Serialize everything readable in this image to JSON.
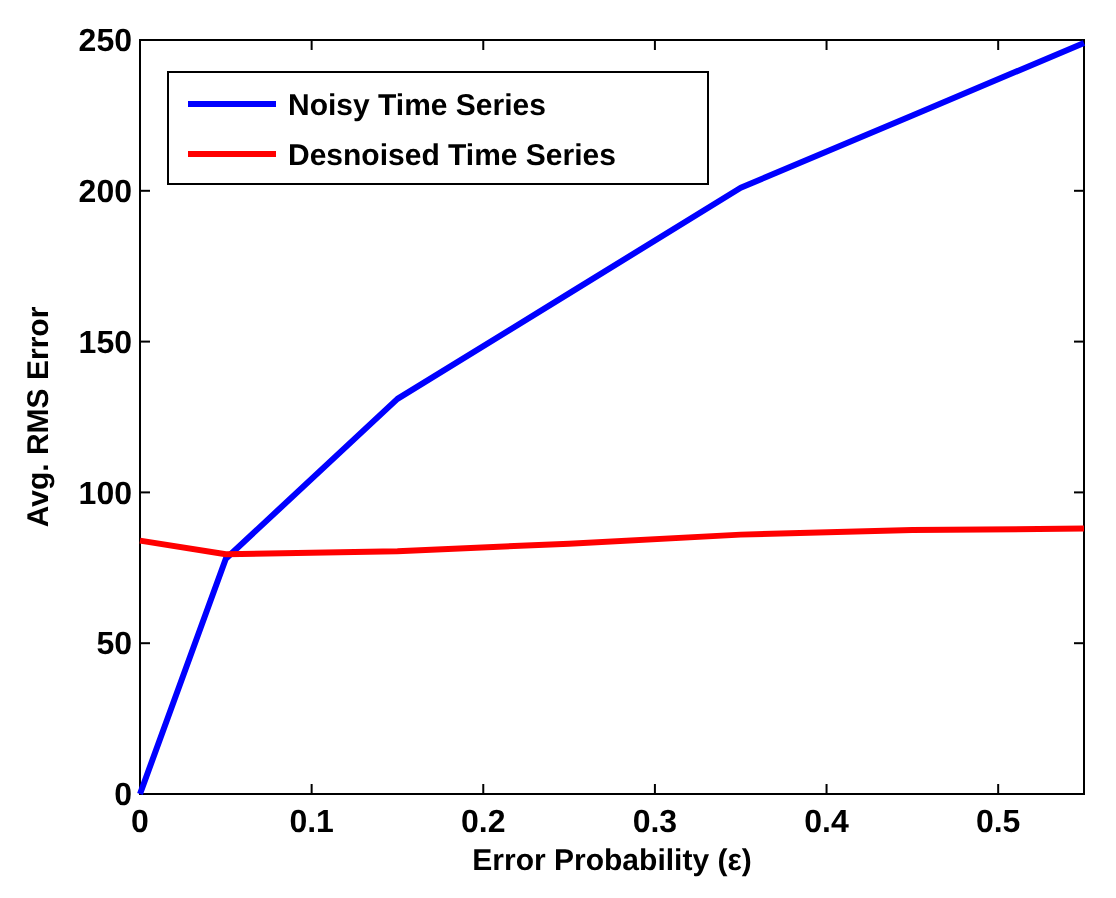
{
  "chart_data": {
    "type": "line",
    "xlabel": "Error Probability (ε)",
    "ylabel": "Avg. RMS Error",
    "x": [
      0,
      0.05,
      0.15,
      0.25,
      0.35,
      0.45,
      0.55
    ],
    "series": [
      {
        "name": "Noisy Time Series",
        "color": "#0000ff",
        "values": [
          0,
          78,
          131,
          166,
          201,
          225,
          249
        ]
      },
      {
        "name": "Desnoised Time Series",
        "color": "#ff0000",
        "values": [
          84,
          79.5,
          80.5,
          83,
          86,
          87.5,
          88
        ]
      }
    ],
    "xlim": [
      0,
      0.55
    ],
    "xticks": [
      0,
      0.1,
      0.2,
      0.3,
      0.4,
      0.5
    ],
    "ylim": [
      0,
      250
    ],
    "yticks": [
      0,
      50,
      100,
      150,
      200,
      250
    ],
    "grid": false,
    "legend": "top left",
    "marker": "none",
    "line_style": "solid"
  }
}
